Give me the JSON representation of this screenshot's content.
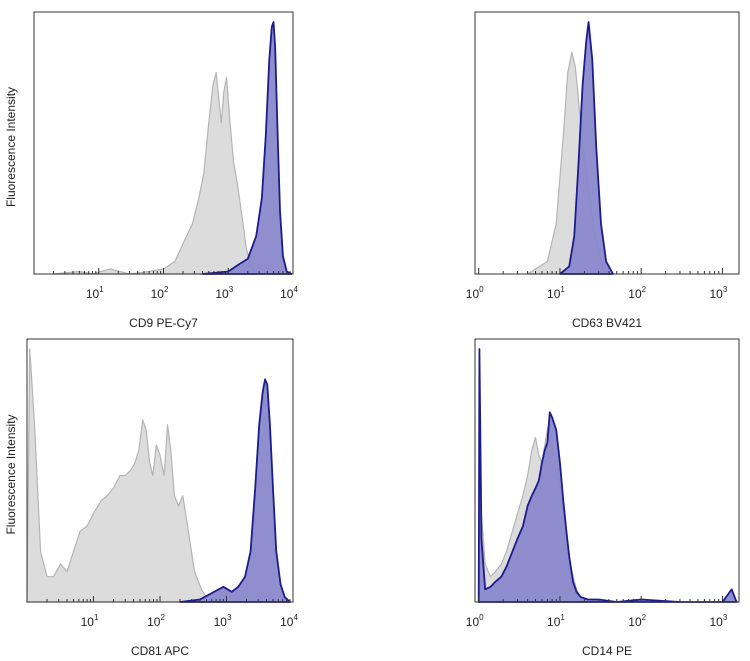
{
  "colors": {
    "control_fill": "#dcdcdc",
    "control_stroke": "#b4b4b4",
    "sample_fill": "#8989cc",
    "sample_stroke": "#1c1c8c",
    "frame": "#333333"
  },
  "chart_data": [
    {
      "type": "area",
      "xlabel": "CD9 PE-Cy7",
      "ylabel": "Fluorescence Intensity",
      "x_scale": "log",
      "xlim": [
        1,
        10000
      ],
      "ylim": [
        0,
        1
      ],
      "x_ticks": [
        {
          "base": "10",
          "exp": "1"
        },
        {
          "base": "10",
          "exp": "2"
        },
        {
          "base": "10",
          "exp": "3"
        },
        {
          "base": "10",
          "exp": "4"
        }
      ],
      "series": [
        {
          "role": "control",
          "points": [
            [
              2,
              0.0
            ],
            [
              5,
              0.01
            ],
            [
              8,
              0.0
            ],
            [
              15,
              0.02
            ],
            [
              30,
              0.0
            ],
            [
              60,
              0.01
            ],
            [
              100,
              0.02
            ],
            [
              150,
              0.05
            ],
            [
              200,
              0.12
            ],
            [
              280,
              0.2
            ],
            [
              350,
              0.3
            ],
            [
              420,
              0.4
            ],
            [
              500,
              0.6
            ],
            [
              580,
              0.75
            ],
            [
              650,
              0.8
            ],
            [
              700,
              0.72
            ],
            [
              780,
              0.6
            ],
            [
              850,
              0.72
            ],
            [
              940,
              0.78
            ],
            [
              1050,
              0.62
            ],
            [
              1200,
              0.45
            ],
            [
              1400,
              0.35
            ],
            [
              1650,
              0.22
            ],
            [
              1900,
              0.1
            ],
            [
              2300,
              0.03
            ],
            [
              2800,
              0.0
            ]
          ]
        },
        {
          "role": "sample",
          "points": [
            [
              400,
              0.0
            ],
            [
              1000,
              0.01
            ],
            [
              1500,
              0.04
            ],
            [
              2000,
              0.06
            ],
            [
              2700,
              0.15
            ],
            [
              3300,
              0.3
            ],
            [
              3800,
              0.55
            ],
            [
              4300,
              0.85
            ],
            [
              4700,
              0.98
            ],
            [
              5000,
              1.0
            ],
            [
              5300,
              0.9
            ],
            [
              5800,
              0.55
            ],
            [
              6300,
              0.25
            ],
            [
              7000,
              0.07
            ],
            [
              8000,
              0.01
            ],
            [
              9500,
              0.0
            ]
          ]
        }
      ]
    },
    {
      "type": "area",
      "xlabel": "CD63 BV421",
      "ylabel": "",
      "x_scale": "log",
      "xlim": [
        0.9,
        1600
      ],
      "ylim": [
        0,
        1
      ],
      "x_ticks": [
        {
          "base": "10",
          "exp": "0"
        },
        {
          "base": "10",
          "exp": "1"
        },
        {
          "base": "10",
          "exp": "2"
        },
        {
          "base": "10",
          "exp": "3"
        }
      ],
      "series": [
        {
          "role": "control",
          "points": [
            [
              4,
              0.0
            ],
            [
              7,
              0.05
            ],
            [
              9,
              0.2
            ],
            [
              11,
              0.55
            ],
            [
              12.5,
              0.8
            ],
            [
              14,
              0.88
            ],
            [
              15.5,
              0.82
            ],
            [
              18,
              0.6
            ],
            [
              22,
              0.35
            ],
            [
              27,
              0.15
            ],
            [
              33,
              0.04
            ],
            [
              40,
              0.0
            ]
          ]
        },
        {
          "role": "sample",
          "points": [
            [
              10,
              0.0
            ],
            [
              13,
              0.03
            ],
            [
              15,
              0.15
            ],
            [
              17,
              0.45
            ],
            [
              19,
              0.75
            ],
            [
              21,
              0.92
            ],
            [
              22.5,
              1.0
            ],
            [
              25,
              0.85
            ],
            [
              28,
              0.5
            ],
            [
              32,
              0.2
            ],
            [
              37,
              0.05
            ],
            [
              45,
              0.0
            ]
          ]
        }
      ]
    },
    {
      "type": "area",
      "xlabel": "CD81 APC",
      "ylabel": "Fluorescence Intensity",
      "x_scale": "log",
      "xlim": [
        1,
        10000
      ],
      "ylim": [
        0,
        1
      ],
      "x_ticks": [
        {
          "base": "10",
          "exp": "1"
        },
        {
          "base": "10",
          "exp": "2"
        },
        {
          "base": "10",
          "exp": "3"
        },
        {
          "base": "10",
          "exp": "4"
        }
      ],
      "series": [
        {
          "role": "control",
          "points": [
            [
              1,
              0.0
            ],
            [
              1.1,
              1.0
            ],
            [
              1.3,
              0.7
            ],
            [
              1.6,
              0.2
            ],
            [
              2,
              0.1
            ],
            [
              2.5,
              0.1
            ],
            [
              3.2,
              0.15
            ],
            [
              4,
              0.12
            ],
            [
              5,
              0.2
            ],
            [
              6.3,
              0.28
            ],
            [
              8,
              0.3
            ],
            [
              10,
              0.35
            ],
            [
              13,
              0.4
            ],
            [
              16,
              0.42
            ],
            [
              20,
              0.45
            ],
            [
              25,
              0.5
            ],
            [
              30,
              0.5
            ],
            [
              36,
              0.52
            ],
            [
              42,
              0.55
            ],
            [
              48,
              0.6
            ],
            [
              55,
              0.72
            ],
            [
              62,
              0.68
            ],
            [
              70,
              0.55
            ],
            [
              78,
              0.5
            ],
            [
              88,
              0.62
            ],
            [
              100,
              0.58
            ],
            [
              115,
              0.5
            ],
            [
              130,
              0.7
            ],
            [
              145,
              0.6
            ],
            [
              165,
              0.42
            ],
            [
              190,
              0.38
            ],
            [
              220,
              0.42
            ],
            [
              260,
              0.3
            ],
            [
              330,
              0.12
            ],
            [
              420,
              0.05
            ],
            [
              550,
              0.0
            ]
          ]
        },
        {
          "role": "sample",
          "points": [
            [
              200,
              0.0
            ],
            [
              400,
              0.01
            ],
            [
              650,
              0.04
            ],
            [
              900,
              0.06
            ],
            [
              1200,
              0.04
            ],
            [
              1500,
              0.06
            ],
            [
              1900,
              0.1
            ],
            [
              2300,
              0.2
            ],
            [
              2700,
              0.45
            ],
            [
              3100,
              0.7
            ],
            [
              3500,
              0.83
            ],
            [
              3800,
              0.88
            ],
            [
              4100,
              0.86
            ],
            [
              4500,
              0.7
            ],
            [
              5000,
              0.45
            ],
            [
              5600,
              0.2
            ],
            [
              6500,
              0.07
            ],
            [
              7500,
              0.02
            ],
            [
              9000,
              0.0
            ]
          ]
        }
      ]
    },
    {
      "type": "area",
      "xlabel": "CD14 PE",
      "ylabel": "",
      "x_scale": "log",
      "xlim": [
        0.9,
        1600
      ],
      "ylim": [
        0,
        1
      ],
      "x_ticks": [
        {
          "base": "10",
          "exp": "0"
        },
        {
          "base": "10",
          "exp": "1"
        },
        {
          "base": "10",
          "exp": "2"
        },
        {
          "base": "10",
          "exp": "3"
        }
      ],
      "series": [
        {
          "role": "control",
          "points": [
            [
              1,
              0.0
            ],
            [
              1.02,
              0.9
            ],
            [
              1.08,
              0.35
            ],
            [
              1.2,
              0.15
            ],
            [
              1.4,
              0.1
            ],
            [
              1.6,
              0.12
            ],
            [
              1.9,
              0.15
            ],
            [
              2.2,
              0.2
            ],
            [
              2.6,
              0.28
            ],
            [
              3,
              0.35
            ],
            [
              3.5,
              0.42
            ],
            [
              4,
              0.5
            ],
            [
              4.5,
              0.6
            ],
            [
              5,
              0.65
            ],
            [
              5.5,
              0.58
            ],
            [
              6,
              0.55
            ],
            [
              6.5,
              0.62
            ],
            [
              7,
              0.68
            ],
            [
              7.5,
              0.72
            ],
            [
              8,
              0.62
            ],
            [
              9,
              0.52
            ],
            [
              10,
              0.45
            ],
            [
              11,
              0.35
            ],
            [
              12,
              0.25
            ],
            [
              14,
              0.12
            ],
            [
              16,
              0.05
            ],
            [
              19,
              0.0
            ]
          ]
        },
        {
          "role": "sample",
          "points": [
            [
              1,
              0.0
            ],
            [
              1.02,
              1.0
            ],
            [
              1.08,
              0.25
            ],
            [
              1.2,
              0.05
            ],
            [
              1.4,
              0.06
            ],
            [
              1.6,
              0.08
            ],
            [
              1.9,
              0.1
            ],
            [
              2.2,
              0.14
            ],
            [
              2.6,
              0.2
            ],
            [
              3,
              0.25
            ],
            [
              3.5,
              0.3
            ],
            [
              4,
              0.38
            ],
            [
              4.5,
              0.42
            ],
            [
              5,
              0.45
            ],
            [
              5.5,
              0.48
            ],
            [
              6,
              0.55
            ],
            [
              6.5,
              0.6
            ],
            [
              7,
              0.63
            ],
            [
              7.5,
              0.75
            ],
            [
              8,
              0.73
            ],
            [
              9,
              0.68
            ],
            [
              10,
              0.55
            ],
            [
              11,
              0.4
            ],
            [
              12,
              0.28
            ],
            [
              13,
              0.18
            ],
            [
              14.5,
              0.08
            ],
            [
              16,
              0.04
            ],
            [
              18,
              0.02
            ],
            [
              22,
              0.01
            ],
            [
              30,
              0.01
            ],
            [
              50,
              0.0
            ],
            [
              100,
              0.01
            ],
            [
              300,
              0.0
            ],
            [
              1000,
              0.0
            ],
            [
              1300,
              0.05
            ],
            [
              1450,
              0.01
            ],
            [
              1500,
              0.0
            ]
          ]
        }
      ]
    }
  ]
}
